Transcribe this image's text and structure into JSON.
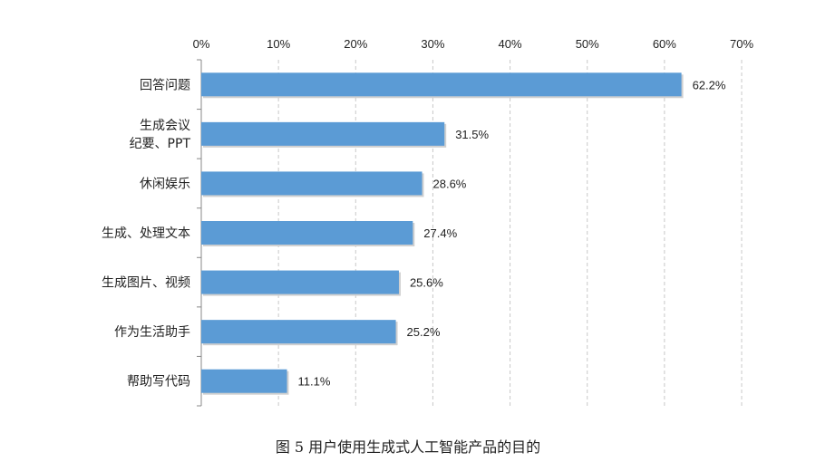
{
  "figure": {
    "caption": "图 5 用户使用生成式人工智能产品的目的"
  },
  "chart_data": {
    "type": "bar",
    "orientation": "horizontal",
    "categories": [
      [
        "回答问题"
      ],
      [
        "生成会议",
        "纪要、PPT"
      ],
      [
        "休闲娱乐"
      ],
      [
        "生成、处理文本"
      ],
      [
        "生成图片、视频"
      ],
      [
        "作为生活助手"
      ],
      [
        "帮助写代码"
      ]
    ],
    "values": [
      62.2,
      31.5,
      28.6,
      27.4,
      25.6,
      25.2,
      11.1
    ],
    "value_labels": [
      "62.2%",
      "31.5%",
      "28.6%",
      "27.4%",
      "25.6%",
      "25.2%",
      "11.1%"
    ],
    "x_ticks": [
      0,
      10,
      20,
      30,
      40,
      50,
      60,
      70
    ],
    "x_tick_labels": [
      "0%",
      "10%",
      "20%",
      "30%",
      "40%",
      "50%",
      "60%",
      "70%"
    ],
    "xlim": [
      0,
      70
    ],
    "axis_position": "top",
    "grid": "vertical dashed",
    "bar_color": "#5b9bd5",
    "legend": "none"
  }
}
